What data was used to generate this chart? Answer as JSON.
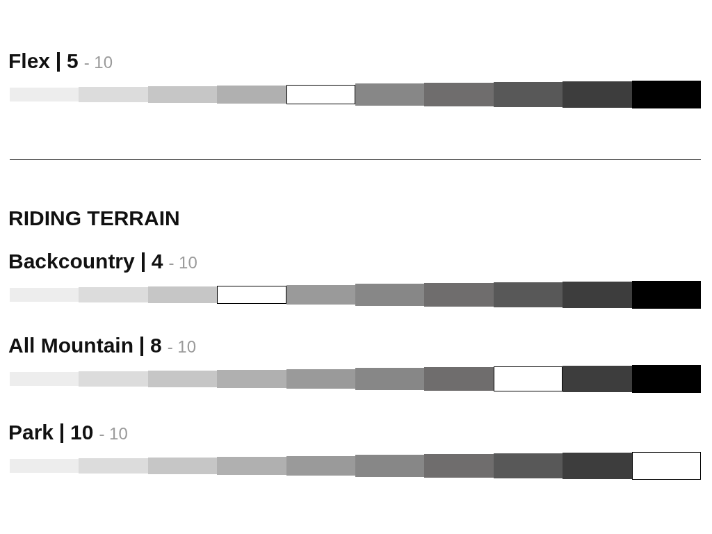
{
  "chart_data": [
    {
      "type": "other",
      "title": "Flex",
      "subtitle": "- 10",
      "values": [
        5
      ],
      "data_labels": true
    },
    {
      "type": "other",
      "annotations": [
        "RIDING TERRAIN"
      ],
      "title": "Backcountry",
      "subtitle": "- 10",
      "values": [
        4
      ],
      "data_labels": true
    },
    {
      "type": "other",
      "title": "All Mountain",
      "subtitle": "- 10",
      "values": [
        8
      ],
      "data_labels": true
    },
    {
      "type": "other",
      "title": "Park",
      "subtitle": "- 10",
      "values": [
        10
      ],
      "data_labels": true
    }
  ]
}
